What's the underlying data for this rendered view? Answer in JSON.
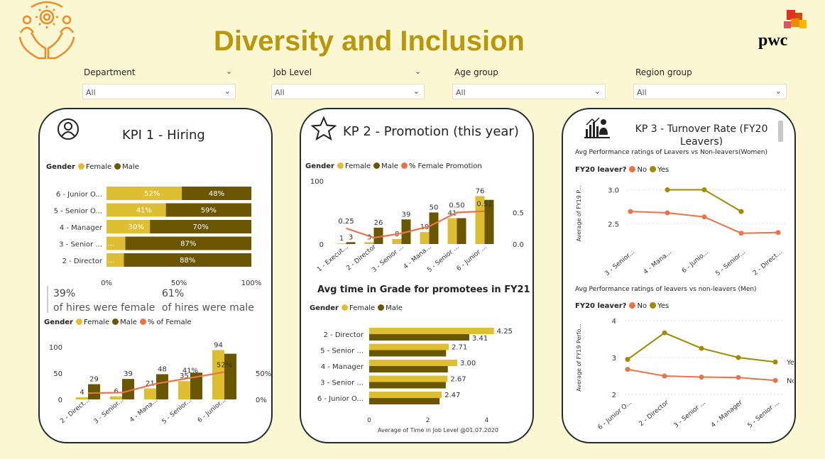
{
  "header": {
    "title": "Diversity and Inclusion",
    "brand": "pwc"
  },
  "filters": [
    {
      "label": "Department",
      "value": "All"
    },
    {
      "label": "Job Level",
      "value": "All"
    },
    {
      "label": "Age group",
      "value": "All"
    },
    {
      "label": "Region group",
      "value": "All"
    }
  ],
  "colors": {
    "female": "#dfbf32",
    "male": "#6b5600",
    "line": "#e8744a",
    "olive": "#a08a00"
  },
  "kpi1": {
    "title": "KPI 1 - Hiring",
    "legend_title": "Gender",
    "legend_female": "Female",
    "legend_male": "Male",
    "legend_pct": "% of Female",
    "female_pct": "39%",
    "female_caption": "of hires were female",
    "male_pct": "61%",
    "male_caption": "of hires were male"
  },
  "kpi2": {
    "title": "KP 2 - Promotion (this year)",
    "legend_title": "Gender",
    "legend_female": "Female",
    "legend_male": "Male",
    "legend_pct": "% Female Promotion",
    "subtitle": "Avg time in Grade for promotees in FY21"
  },
  "kpi3": {
    "title": "KP 3 - Turnover  Rate (FY20 Leavers)",
    "legend_title": "FY20 leaver?",
    "legend_no": "No",
    "legend_yes": "Yes"
  },
  "chart_data": [
    {
      "id": "hiring_stacked",
      "type": "bar",
      "orientation": "horizontal-100%-stacked",
      "categories": [
        "6 - Junior O...",
        "5 - Senior O...",
        "4 - Manager",
        "3 - Senior ...",
        "2 - Director"
      ],
      "series": [
        {
          "name": "Female",
          "values": [
            52,
            41,
            30,
            13,
            12
          ],
          "labels": [
            "52%",
            "41%",
            "30%",
            "1...",
            "1..."
          ]
        },
        {
          "name": "Male",
          "values": [
            48,
            59,
            70,
            87,
            88
          ],
          "labels": [
            "48%",
            "59%",
            "70%",
            "87%",
            "88%"
          ]
        }
      ],
      "xticks": [
        "0%",
        "50%",
        "100%"
      ]
    },
    {
      "id": "hiring_combo",
      "type": "bar",
      "categories": [
        "2 - Direct...",
        "3 - Senior...",
        "4 - Mana...",
        "5 - Senior...",
        "6 - Junior..."
      ],
      "series": [
        {
          "name": "Female",
          "values": [
            4,
            6,
            21,
            35,
            94
          ]
        },
        {
          "name": "Male",
          "values": [
            29,
            39,
            48,
            51,
            87
          ]
        },
        {
          "name": "% of Female",
          "values": [
            12,
            13,
            30,
            41,
            52
          ]
        }
      ],
      "bar_labels": [
        "4",
        "29",
        "6",
        "39",
        "21",
        "48",
        "35",
        "",
        "94",
        ""
      ],
      "line_labels": {
        "3": "41%",
        "4": "52%"
      },
      "ylim": [
        0,
        100
      ],
      "yticks": [
        "0",
        "50",
        "100"
      ],
      "y2ticks": [
        "0%",
        "50%"
      ]
    },
    {
      "id": "promotion_combo",
      "type": "bar",
      "categories": [
        "1 - Execut...",
        "2 - Director",
        "3 - Senior ...",
        "4 - Mana...",
        "5 - Senior ...",
        "6 - Junior ..."
      ],
      "series": [
        {
          "name": "Female",
          "values": [
            1,
            3,
            8,
            19,
            41,
            76
          ]
        },
        {
          "name": "Male",
          "values": [
            3,
            26,
            39,
            50,
            41,
            70
          ]
        },
        {
          "name": "% Female Promotion",
          "values": [
            0.25,
            0.1,
            0.17,
            0.28,
            0.5,
            0.52
          ]
        }
      ],
      "bar_labels": [
        "1",
        "3",
        "3",
        "26",
        "8",
        "39",
        "19",
        "50",
        "41",
        "",
        "76",
        ""
      ],
      "line_labels": {
        "0": "0.25",
        "4": "0.50",
        "5": "0.52"
      },
      "ylim": [
        0,
        100
      ],
      "yticks": [
        "0",
        "100"
      ],
      "y2ticks": [
        "0.0",
        "0.5"
      ]
    },
    {
      "id": "avg_time_in_grade",
      "type": "bar",
      "orientation": "horizontal",
      "categories": [
        "2 - Director",
        "5 - Senior ...",
        "4 - Manager",
        "3 - Senior ...",
        "6 - Junior O..."
      ],
      "series": [
        {
          "name": "Female",
          "values": [
            4.25,
            2.71,
            3.0,
            2.67,
            2.47
          ]
        },
        {
          "name": "Male",
          "values": [
            3.41,
            2.62,
            2.68,
            2.61,
            2.4
          ]
        }
      ],
      "labels_female": [
        "4.25",
        "2.71",
        "3.00",
        "2.67",
        "2.47"
      ],
      "labels_male": [
        "3.41",
        "",
        "",
        "",
        ""
      ],
      "xlabel": "Average of Time in Job Level @01.07.2020",
      "xlim": [
        0,
        4.5
      ],
      "xticks": [
        "0",
        "2",
        "4"
      ]
    },
    {
      "id": "perf_women",
      "type": "line",
      "title": "Avg Performance ratings of Leavers vs Non-leavers(Women)",
      "categories": [
        "3 - Senior...",
        "4 - Mana...",
        "6 - Junio...",
        "5 - Senior...",
        "2 - Direct..."
      ],
      "series": [
        {
          "name": "No",
          "values": [
            2.68,
            2.66,
            2.6,
            2.36,
            2.37
          ]
        },
        {
          "name": "Yes",
          "values": [
            null,
            3.0,
            3.0,
            2.68,
            null
          ]
        }
      ],
      "ylabel": "Average of FY19 P...",
      "ylim": [
        2.2,
        3.1
      ],
      "yticks": [
        "2.5",
        "3.0"
      ]
    },
    {
      "id": "perf_men",
      "type": "line",
      "title": "Avg Performance ratings of leavers vs non-leavers (Men)",
      "categories": [
        "6 - Junior O...",
        "2 - Director",
        "3 - Senior ...",
        "4 - Manager",
        "5 - Senior ..."
      ],
      "series": [
        {
          "name": "Yes",
          "values": [
            2.95,
            3.67,
            3.25,
            3.0,
            2.88
          ]
        },
        {
          "name": "No",
          "values": [
            2.68,
            2.5,
            2.47,
            2.46,
            2.38
          ]
        }
      ],
      "ylabel": "Average of FY19 Perfo...",
      "ylim": [
        2,
        4
      ],
      "yticks": [
        "2",
        "3",
        "4"
      ]
    }
  ]
}
